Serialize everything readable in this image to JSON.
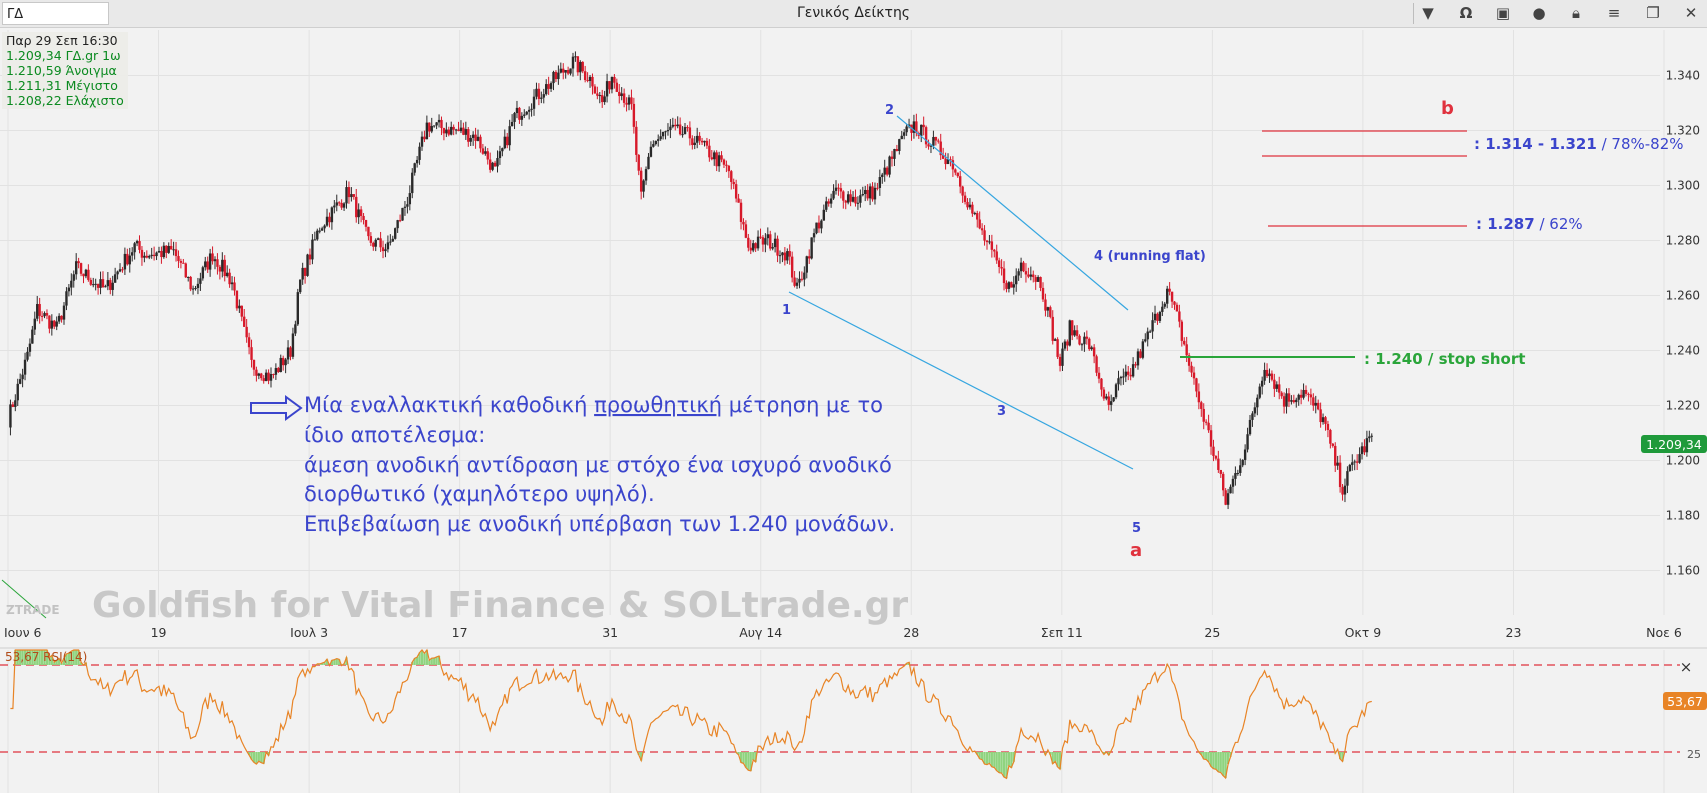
{
  "window": {
    "symbol": "ΓΔ",
    "title": "Γενικός Δείκτης",
    "buttons": [
      "chevron-down",
      "omega",
      "layout",
      "chat",
      "lock",
      "menu",
      "restore",
      "close"
    ]
  },
  "info": {
    "datetime": "Παρ 29 Σεπ 16:30",
    "lines": [
      "1.209,34 ΓΔ.gr 1ω",
      "1.210,59 Άνοιγμα",
      "1.211,31 Μέγιστο",
      "1.208,22 Ελάχιστο"
    ]
  },
  "colors": {
    "up": "#2a2a2a",
    "down": "#d7192a",
    "rsi": "#e88426",
    "annotation_blue": "#3b45cc",
    "trendline": "#36a6e0",
    "fib_line": "#e0323e",
    "stop_line": "#2aa53a",
    "price_tag": "#1f9a3b"
  },
  "chart_data": {
    "type": "candlestick",
    "title": "Γενικός Δείκτης",
    "y_range": [
      1.15,
      1.35
    ],
    "y_ticks": [
      "1.160",
      "1.180",
      "1.200",
      "1.220",
      "1.240",
      "1.260",
      "1.280",
      "1.300",
      "1.320",
      "1.340"
    ],
    "x_ticks": [
      "Ιουν 6",
      "19",
      "Ιουλ 3",
      "17",
      "31",
      "Αυγ 14",
      "28",
      "Σεπ 11",
      "25",
      "Οκτ 9",
      "23",
      "Νοε 6"
    ],
    "price_path": [
      [
        0,
        1.215
      ],
      [
        2,
        1.238
      ],
      [
        3,
        1.255
      ],
      [
        5,
        1.248
      ],
      [
        7,
        1.27
      ],
      [
        10,
        1.262
      ],
      [
        13,
        1.278
      ],
      [
        14,
        1.275
      ],
      [
        17,
        1.276
      ],
      [
        19,
        1.262
      ],
      [
        21,
        1.275
      ],
      [
        23,
        1.265
      ],
      [
        25,
        1.235
      ],
      [
        27,
        1.23
      ],
      [
        29,
        1.24
      ],
      [
        30,
        1.265
      ],
      [
        32,
        1.285
      ],
      [
        35,
        1.298
      ],
      [
        37,
        1.28
      ],
      [
        39,
        1.277
      ],
      [
        41,
        1.295
      ],
      [
        43,
        1.322
      ],
      [
        46,
        1.32
      ],
      [
        48,
        1.318
      ],
      [
        50,
        1.305
      ],
      [
        52,
        1.325
      ],
      [
        55,
        1.335
      ],
      [
        58,
        1.345
      ],
      [
        60,
        1.338
      ],
      [
        61,
        1.33
      ],
      [
        62,
        1.34
      ],
      [
        64,
        1.328
      ],
      [
        65,
        1.295
      ],
      [
        66,
        1.315
      ],
      [
        68,
        1.32
      ],
      [
        70,
        1.318
      ],
      [
        72,
        1.312
      ],
      [
        74,
        1.305
      ],
      [
        76,
        1.278
      ],
      [
        78,
        1.28
      ],
      [
        80,
        1.275
      ],
      [
        81,
        1.262
      ],
      [
        83,
        1.285
      ],
      [
        85,
        1.298
      ],
      [
        87,
        1.295
      ],
      [
        89,
        1.298
      ],
      [
        92,
        1.318
      ],
      [
        93,
        1.322
      ],
      [
        95,
        1.315
      ],
      [
        97,
        1.308
      ],
      [
        99,
        1.29
      ],
      [
        101,
        1.275
      ],
      [
        102,
        1.268
      ],
      [
        103,
        1.262
      ],
      [
        104,
        1.272
      ],
      [
        106,
        1.265
      ],
      [
        108,
        1.235
      ],
      [
        109,
        1.248
      ],
      [
        111,
        1.242
      ],
      [
        113,
        1.218
      ],
      [
        114,
        1.228
      ],
      [
        115,
        1.23
      ],
      [
        117,
        1.245
      ],
      [
        119,
        1.262
      ],
      [
        120,
        1.252
      ],
      [
        122,
        1.225
      ],
      [
        124,
        1.2
      ],
      [
        125,
        1.185
      ],
      [
        127,
        1.205
      ],
      [
        129,
        1.235
      ],
      [
        131,
        1.222
      ],
      [
        133,
        1.225
      ],
      [
        135,
        1.215
      ],
      [
        137,
        1.19
      ],
      [
        138,
        1.198
      ],
      [
        140,
        1.209
      ]
    ],
    "x_max_index": 170,
    "last_price": "1.209,34",
    "annotations": {
      "wave_labels": [
        "1",
        "2",
        "3",
        "4 (running flat)",
        "5"
      ],
      "a_label": "a",
      "b_label": "b",
      "fib1": ": 1.314 - 1.321",
      "fib1_pct": "/ 78%-82%",
      "fib2": ": 1.287",
      "fib2_pct": "/ 62%",
      "stop": ": 1.240 / stop short",
      "text_lines": [
        "Μία εναλλακτική καθοδική ",
        "προωθητική",
        " μέτρηση με το",
        "ίδιο αποτέλεσμα:",
        "άμεση ανοδική αντίδραση με στόχο ένα ισχυρό ανοδικό",
        "διορθωτικό (χαμηλότερο υψηλό).",
        "Επιβεβαίωση με ανοδική υπέρβαση των 1.240 μονάδων."
      ]
    },
    "watermark": "Goldfish for Vital Finance & SOLtrade.gr",
    "logo": "ZTRADE"
  },
  "rsi": {
    "label": "53,67 RSI(14)",
    "value_tag": "53,67",
    "period": 14,
    "bounds": [
      25,
      75
    ],
    "y_tick": "25",
    "close_symbol": "×"
  }
}
